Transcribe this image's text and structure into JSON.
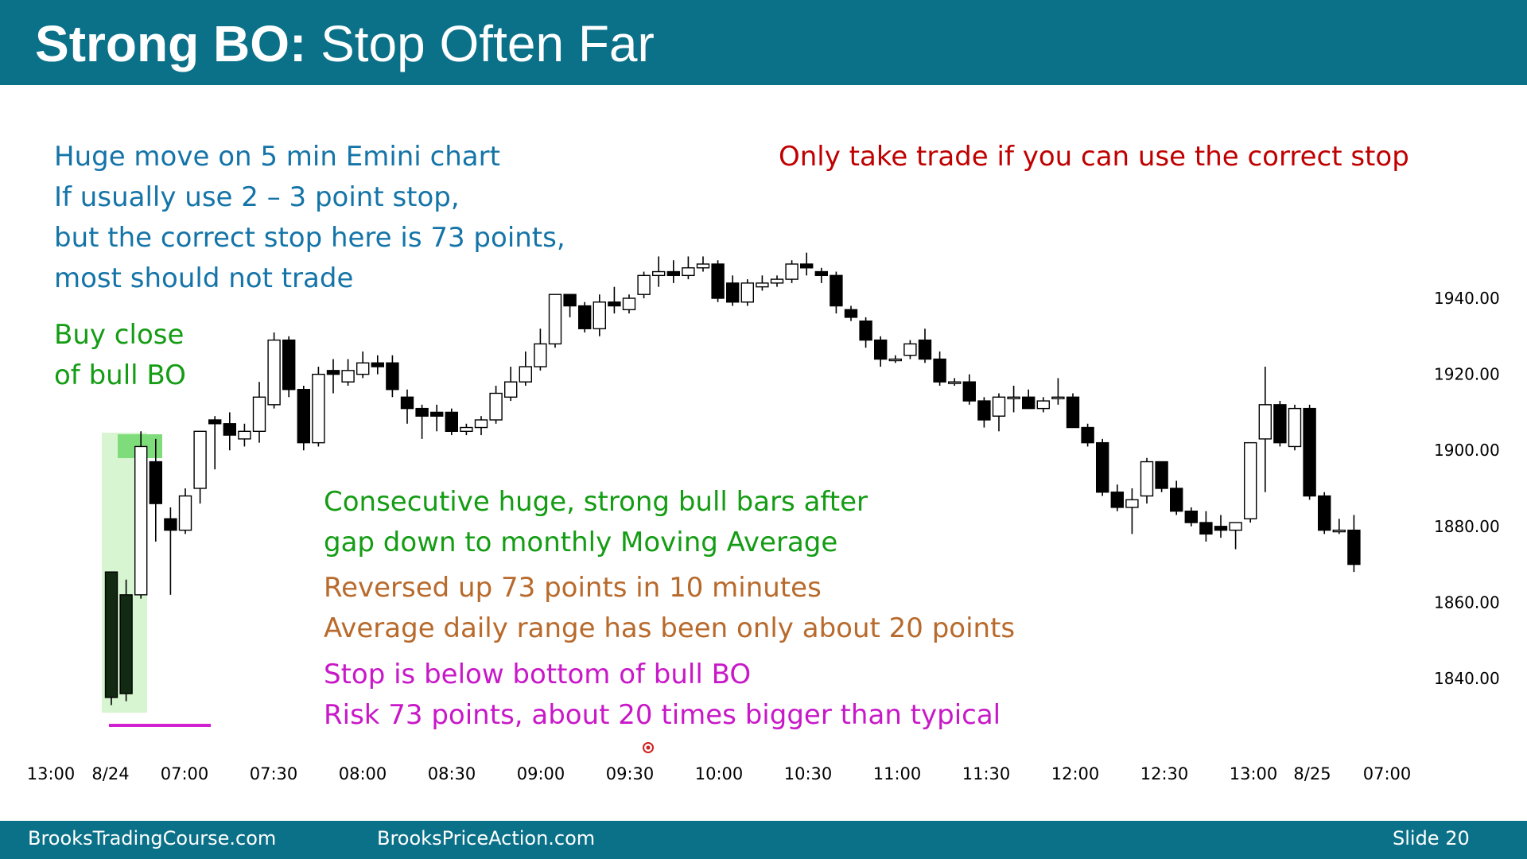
{
  "slide": {
    "title_bold": "Strong BO:",
    "title_rest": "Stop Often Far",
    "footer_left": "BrooksTradingCourse.com",
    "footer_mid": "BrooksPriceAction.com",
    "footer_right": "Slide  20"
  },
  "notes": {
    "top_left": [
      "Huge move on 5 min Emini chart",
      "If usually use 2 – 3 point stop,",
      "but the correct stop here is 73 points,",
      "most should not trade"
    ],
    "top_right": "Only take trade if you can use the correct stop",
    "buy": [
      "Buy close",
      "of bull BO"
    ],
    "consecutive": [
      "Consecutive huge, strong bull bars after",
      "gap down to monthly Moving Average"
    ],
    "reversed": [
      "Reversed up 73 points in 10 minutes",
      "Average daily range has been only about 20 points"
    ],
    "stop": [
      "Stop is below bottom of bull BO",
      "Risk 73 points, about 20 times bigger than typical"
    ]
  },
  "colors": {
    "header": "#0b7189",
    "blue_text": "#1474a8",
    "red_text": "#c00000",
    "green_text": "#149c14",
    "brown_text": "#b86a2c",
    "magenta_text": "#c818c8",
    "highlight_light": "#d6f5d0",
    "highlight_dark": "#7fdc7a",
    "stop_line": "#d020d0"
  },
  "chart_data": {
    "type": "candlestick",
    "title": "",
    "y_ticks": [
      "1940.00",
      "1920.00",
      "1900.00",
      "1880.00",
      "1860.00",
      "1840.00"
    ],
    "y_tick_values": [
      1940,
      1920,
      1900,
      1880,
      1860,
      1840
    ],
    "ylim": [
      1830,
      1955
    ],
    "x_ticks": [
      "13:00",
      "8/24",
      "07:00",
      "07:30",
      "08:00",
      "08:30",
      "09:00",
      "09:30",
      "10:00",
      "10:30",
      "11:00",
      "11:30",
      "12:00",
      "12:30",
      "13:00",
      "8/25",
      "07:00"
    ],
    "bars": [
      [
        1868,
        1868,
        1833,
        1835
      ],
      [
        1862,
        1866,
        1834,
        1836
      ],
      [
        1862,
        1905,
        1861,
        1901
      ],
      [
        1897,
        1903,
        1876,
        1886
      ],
      [
        1882,
        1885,
        1862,
        1879
      ],
      [
        1879,
        1890,
        1878,
        1888
      ],
      [
        1890,
        1905,
        1886,
        1905
      ],
      [
        1908,
        1909,
        1895,
        1907
      ],
      [
        1907,
        1910,
        1900,
        1904
      ],
      [
        1903,
        1907,
        1901,
        1905
      ],
      [
        1905,
        1918,
        1902,
        1914
      ],
      [
        1912,
        1931,
        1911,
        1929
      ],
      [
        1929,
        1930,
        1914,
        1916
      ],
      [
        1916,
        1917,
        1900,
        1902
      ],
      [
        1902,
        1922,
        1901,
        1920
      ],
      [
        1921,
        1924,
        1915,
        1920
      ],
      [
        1918,
        1924,
        1917,
        1921
      ],
      [
        1920,
        1926,
        1919,
        1923
      ],
      [
        1923,
        1925,
        1920,
        1922
      ],
      [
        1923,
        1925,
        1914,
        1916
      ],
      [
        1914,
        1916,
        1907,
        1911
      ],
      [
        1911,
        1912,
        1903,
        1909
      ],
      [
        1910,
        1912,
        1905,
        1909
      ],
      [
        1910,
        1911,
        1904,
        1905
      ],
      [
        1905,
        1907,
        1904,
        1906
      ],
      [
        1906,
        1909,
        1904,
        1908
      ],
      [
        1908,
        1917,
        1907,
        1915
      ],
      [
        1914,
        1922,
        1913,
        1918
      ],
      [
        1918,
        1926,
        1917,
        1922
      ],
      [
        1922,
        1932,
        1921,
        1928
      ],
      [
        1928,
        1941,
        1927,
        1941
      ],
      [
        1941,
        1941,
        1935,
        1938
      ],
      [
        1938,
        1939,
        1931,
        1932
      ],
      [
        1932,
        1941,
        1930,
        1939
      ],
      [
        1939,
        1943,
        1936,
        1938
      ],
      [
        1937,
        1941,
        1936,
        1940
      ],
      [
        1941,
        1947,
        1940,
        1946
      ],
      [
        1946,
        1951,
        1943,
        1947
      ],
      [
        1947,
        1950,
        1944,
        1946
      ],
      [
        1946,
        1951,
        1945,
        1948
      ],
      [
        1948,
        1951,
        1947,
        1949
      ],
      [
        1949,
        1950,
        1939,
        1940
      ],
      [
        1944,
        1946,
        1938,
        1939
      ],
      [
        1939,
        1945,
        1938,
        1944
      ],
      [
        1943,
        1946,
        1942,
        1944
      ],
      [
        1944,
        1946,
        1943,
        1945
      ],
      [
        1945,
        1950,
        1944,
        1949
      ],
      [
        1949,
        1952,
        1946,
        1948
      ],
      [
        1947,
        1948,
        1944,
        1946
      ],
      [
        1946,
        1947,
        1936,
        1938
      ],
      [
        1937,
        1938,
        1934,
        1935
      ],
      [
        1934,
        1935,
        1927,
        1929
      ],
      [
        1929,
        1930,
        1922,
        1924
      ],
      [
        1924,
        1925,
        1923,
        1924
      ],
      [
        1925,
        1929,
        1924,
        1928
      ],
      [
        1929,
        1932,
        1923,
        1924
      ],
      [
        1924,
        1926,
        1917,
        1918
      ],
      [
        1918,
        1919,
        1917,
        1918
      ],
      [
        1918,
        1920,
        1912,
        1913
      ],
      [
        1913,
        1914,
        1906,
        1908
      ],
      [
        1909,
        1915,
        1905,
        1914
      ],
      [
        1914,
        1917,
        1910,
        1914
      ],
      [
        1914,
        1916,
        1911,
        1911
      ],
      [
        1911,
        1914,
        1910,
        1913
      ],
      [
        1914,
        1919,
        1912,
        1914
      ],
      [
        1914,
        1915,
        1906,
        1906
      ],
      [
        1906,
        1907,
        1901,
        1902
      ],
      [
        1902,
        1903,
        1888,
        1889
      ],
      [
        1889,
        1891,
        1884,
        1885
      ],
      [
        1885,
        1890,
        1878,
        1887
      ],
      [
        1888,
        1898,
        1886,
        1897
      ],
      [
        1897,
        1897,
        1889,
        1890
      ],
      [
        1890,
        1892,
        1883,
        1884
      ],
      [
        1884,
        1885,
        1880,
        1881
      ],
      [
        1881,
        1884,
        1876,
        1878
      ],
      [
        1880,
        1883,
        1877,
        1879
      ],
      [
        1879,
        1881,
        1874,
        1881
      ],
      [
        1882,
        1902,
        1881,
        1902
      ],
      [
        1903,
        1922,
        1889,
        1912
      ],
      [
        1912,
        1913,
        1901,
        1902
      ],
      [
        1901,
        1912,
        1900,
        1911
      ],
      [
        1911,
        1912,
        1887,
        1888
      ],
      [
        1888,
        1889,
        1878,
        1879
      ],
      [
        1879,
        1882,
        1878,
        1879
      ],
      [
        1879,
        1883,
        1868,
        1870
      ]
    ]
  }
}
